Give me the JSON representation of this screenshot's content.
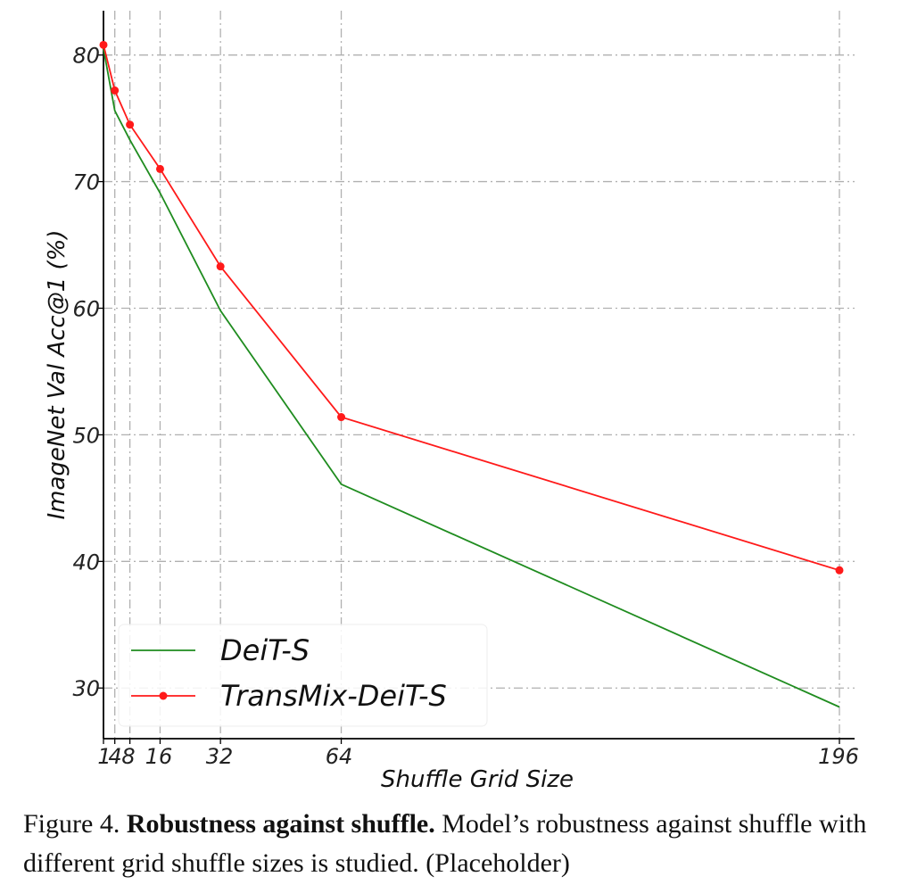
{
  "chart_data": {
    "type": "line",
    "xlabel": "Shuffle Grid Size",
    "ylabel": "ImageNet Val Acc@1 (%)",
    "x": [
      1,
      4,
      8,
      16,
      32,
      64,
      196
    ],
    "x_tick_labels": [
      "1",
      "4",
      "8",
      "16",
      "32",
      "64",
      "196"
    ],
    "y_ticks": [
      30,
      40,
      50,
      60,
      70,
      80
    ],
    "ylim": [
      26,
      83.5
    ],
    "xlim": [
      1,
      200
    ],
    "grid": true,
    "legend_position": "lower-left",
    "series": [
      {
        "name": "DeiT-S",
        "color": "#1f8c1f",
        "marker": "none",
        "values": [
          80.5,
          75.6,
          73.3,
          69.1,
          59.8,
          46.1,
          28.5
        ]
      },
      {
        "name": "TransMix-DeiT-S",
        "color": "#ff1a1a",
        "marker": "circle",
        "values": [
          80.8,
          77.2,
          74.5,
          71.0,
          63.3,
          51.4,
          39.3
        ]
      }
    ]
  },
  "caption": {
    "prefix": "Figure 4. ",
    "title": "Robustness against shuffle.",
    "body": " Model’s robustness against shuffle with different grid shuffle sizes is studied. (Placeholder)"
  }
}
